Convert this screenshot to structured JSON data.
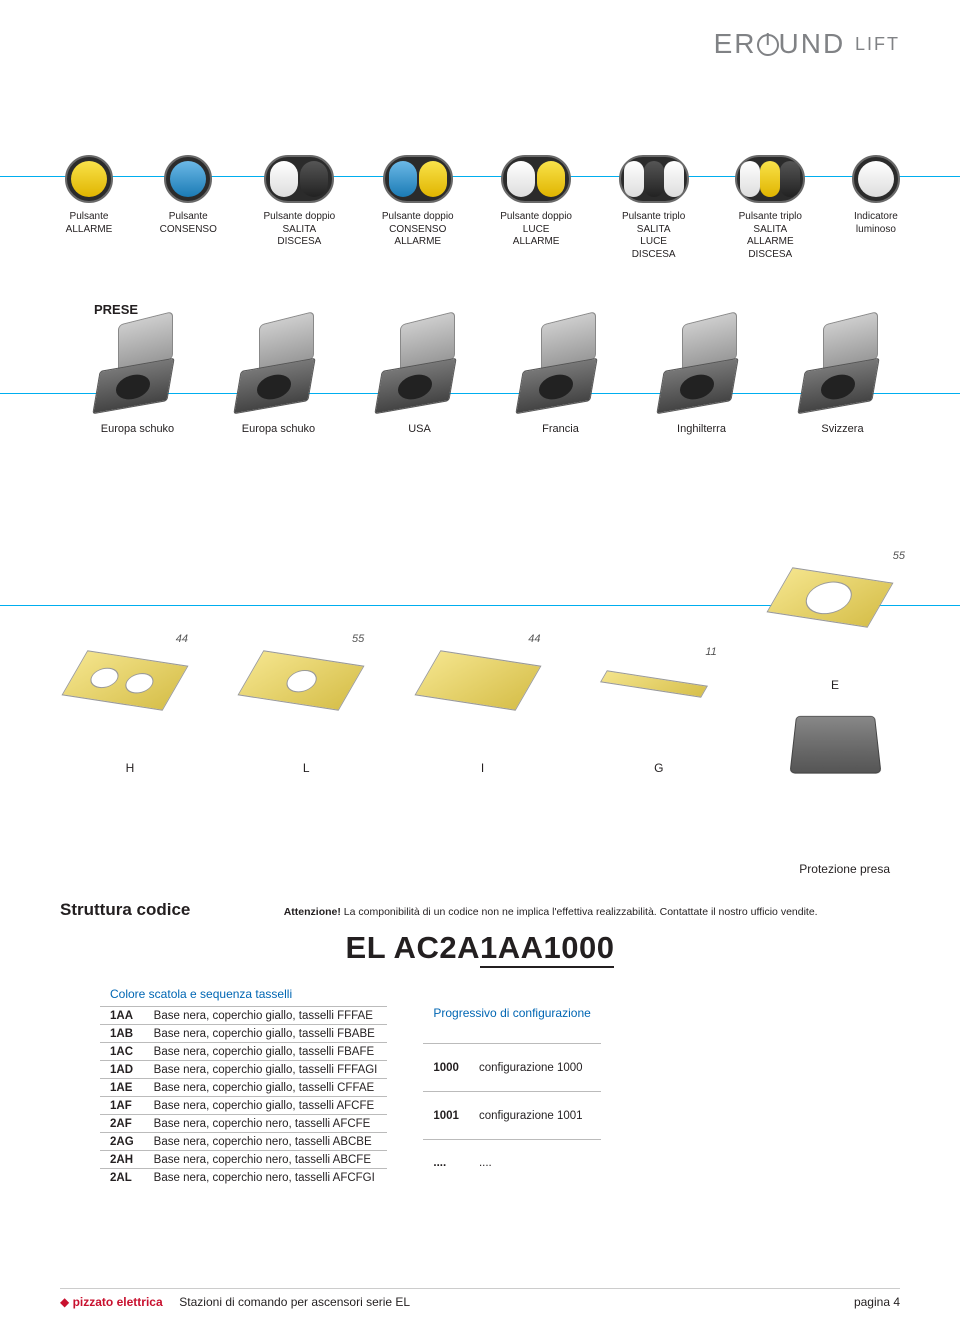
{
  "logo": {
    "text_pre": "ER",
    "text_post": "UND",
    "suffix": "LIFT"
  },
  "buttons": [
    {
      "lines": [
        "Pulsante",
        "ALLARME"
      ],
      "style": "round-yellow"
    },
    {
      "lines": [
        "Pulsante",
        "CONSENSO"
      ],
      "style": "round-blue"
    },
    {
      "lines": [
        "Pulsante doppio",
        "SALITA",
        "DISCESA"
      ],
      "style": "dbl-white-black"
    },
    {
      "lines": [
        "Pulsante doppio",
        "CONSENSO",
        "ALLARME"
      ],
      "style": "dbl-blue-yellow"
    },
    {
      "lines": [
        "Pulsante doppio",
        "LUCE",
        "ALLARME"
      ],
      "style": "dbl-white-yellow"
    },
    {
      "lines": [
        "Pulsante triplo",
        "SALITA",
        "LUCE",
        "DISCESA"
      ],
      "style": "tri-wbw"
    },
    {
      "lines": [
        "Pulsante triplo",
        "SALITA",
        "ALLARME",
        "DISCESA"
      ],
      "style": "tri-wyb"
    },
    {
      "lines": [
        "Indicatore",
        "luminoso"
      ],
      "style": "round-white"
    }
  ],
  "prese_label": "PRESE",
  "prese": [
    {
      "label": "Europa schuko"
    },
    {
      "label": "Europa schuko"
    },
    {
      "label": "USA"
    },
    {
      "label": "Francia"
    },
    {
      "label": "Inghilterra"
    },
    {
      "label": "Svizzera"
    }
  ],
  "plates": [
    {
      "letter": "H",
      "dim": "44",
      "variant": "has-holes"
    },
    {
      "letter": "L",
      "dim": "55",
      "variant": "one-hole"
    },
    {
      "letter": "I",
      "dim": "44",
      "variant": "plain"
    },
    {
      "letter": "G",
      "dim": "11",
      "variant": "narrow"
    },
    {
      "letter": "E",
      "dim": "55",
      "variant": "big-hole"
    }
  ],
  "protezione": "Protezione presa",
  "struttura": {
    "title": "Struttura codice",
    "warn_bold": "Attenzione!",
    "warn_text": " La componibilità di un codice non ne implica l'effettiva realizzabilità. Contattate il nostro ufficio vendite.",
    "code_prefix": "EL AC2A",
    "code_mid": "1AA",
    "code_suffix": "1000"
  },
  "left_table": {
    "header": "Colore scatola e sequenza tasselli",
    "rows": [
      {
        "code": "1AA",
        "desc": "Base nera, coperchio giallo, tasselli FFFAE"
      },
      {
        "code": "1AB",
        "desc": "Base nera, coperchio giallo, tasselli FBABE"
      },
      {
        "code": "1AC",
        "desc": "Base nera, coperchio giallo, tasselli FBAFE"
      },
      {
        "code": "1AD",
        "desc": "Base nera, coperchio giallo, tasselli FFFAGI"
      },
      {
        "code": "1AE",
        "desc": "Base nera, coperchio giallo, tasselli CFFAE"
      },
      {
        "code": "1AF",
        "desc": "Base nera, coperchio giallo, tasselli AFCFE"
      },
      {
        "code": "2AF",
        "desc": "Base nera, coperchio nero, tasselli AFCFE"
      },
      {
        "code": "2AG",
        "desc": "Base nera, coperchio nero, tasselli ABCBE"
      },
      {
        "code": "2AH",
        "desc": "Base nera, coperchio nero, tasselli ABCFE"
      },
      {
        "code": "2AL",
        "desc": "Base nera, coperchio nero, tasselli AFCFGI"
      }
    ]
  },
  "right_table": {
    "header": "Progressivo di configurazione",
    "rows": [
      {
        "code": "1000",
        "desc": "configurazione 1000"
      },
      {
        "code": "1001",
        "desc": "configurazione 1001"
      },
      {
        "code": "....",
        "desc": "...."
      }
    ]
  },
  "footer": {
    "brand": "pizzato",
    "brand_sub": "elettrica",
    "mid": "Stazioni di comando per ascensori serie EL",
    "page": "pagina 4"
  },
  "colors": {
    "cyan": "#00aeef",
    "blue_header": "#0066b3",
    "yellow_plate": "#e8d470",
    "brand_red": "#c8102e",
    "text": "#231f20",
    "grey": "#808285"
  }
}
